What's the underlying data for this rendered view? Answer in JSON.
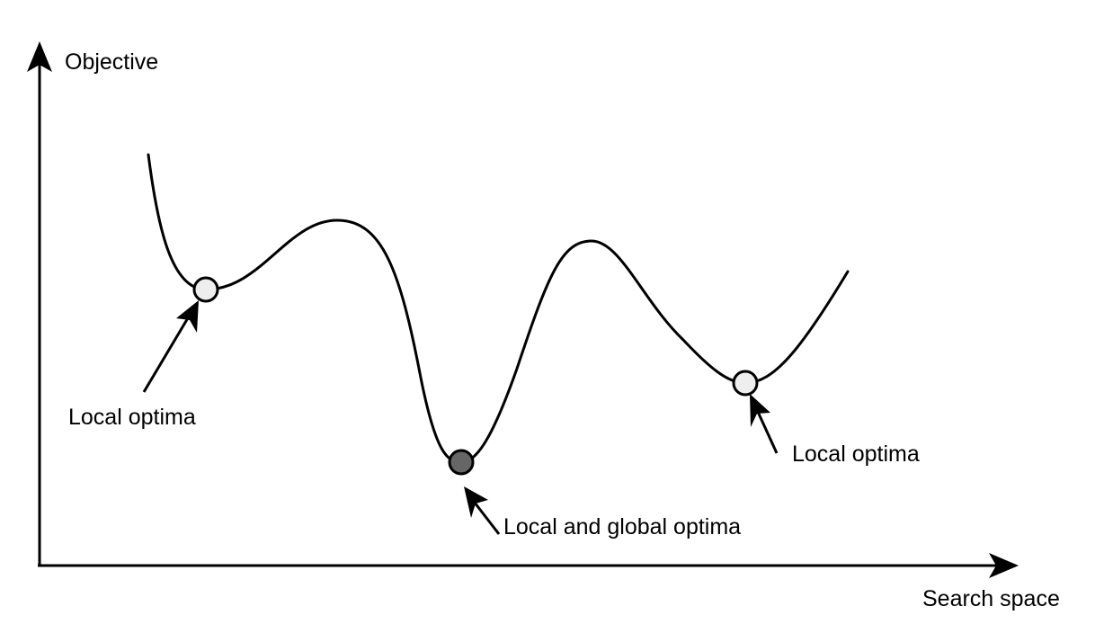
{
  "axes": {
    "y_label": "Objective",
    "x_label": "Search space"
  },
  "annotations": [
    {
      "id": "local-optimum-left",
      "text": "Local optima",
      "kind": "local"
    },
    {
      "id": "global-optimum",
      "text": "Local and global optima",
      "kind": "global"
    },
    {
      "id": "local-optimum-right",
      "text": "Local optima",
      "kind": "local"
    }
  ],
  "colors": {
    "stroke": "#000000",
    "local_marker_fill": "#eeeeee",
    "global_marker_fill": "#666666",
    "background": "#ffffff"
  }
}
